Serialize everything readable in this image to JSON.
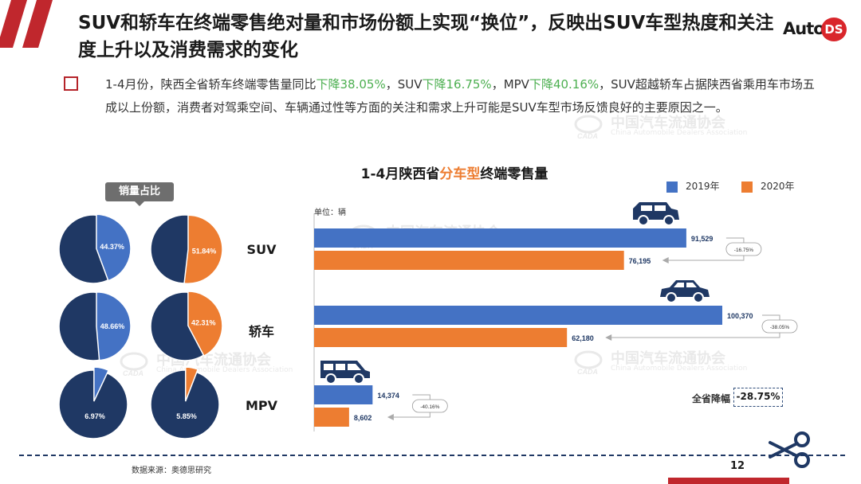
{
  "slide": {
    "title": "SUV和轿车在终端零售绝对量和市场份额上实现“换位”，反映出SUV车型热度和关注度上升以及消费需求的变化",
    "logo_auto": "Auto",
    "logo_ds": "DS",
    "bullet": {
      "p1": "1-4月份，陕西全省轿车终端零售量同比",
      "h1": "下降38.05%",
      "p2": "，SUV",
      "h2": "下降16.75%",
      "p3": "，MPV",
      "h3": "下降40.16%",
      "p4": "，SUV超越轿车占据陕西省乘用车市场五成以上份额，消费者对驾乘空间、车辆通过性等方面的关注和需求上升可能是SUV车型市场反馈良好的主要原因之一。"
    },
    "watermark_title": "中国汽车流通协会",
    "watermark_sub": "China Automobile Dealers Association",
    "badge": "销量占比",
    "source": "数据来源：奥德思研究",
    "page_number": "12"
  },
  "colors": {
    "y2019": "#4472c4",
    "y2020": "#ed7d31",
    "navy": "#1f3864",
    "accent_red": "#c0272d",
    "green": "#4caf50"
  },
  "chart_data": [
    {
      "type": "pie",
      "label_group": "销量占比",
      "categories": [
        "SUV",
        "轿车",
        "MPV"
      ],
      "years": [
        "2019年",
        "2020年"
      ],
      "shares": {
        "2019年": [
          44.37,
          48.66,
          6.97
        ],
        "2020年": [
          51.84,
          42.31,
          5.85
        ]
      },
      "share_labels": {
        "2019年": [
          "44.37%",
          "48.66%",
          "6.97%"
        ],
        "2020年": [
          "51.84%",
          "42.31%",
          "5.85%"
        ]
      }
    },
    {
      "type": "bar",
      "orientation": "horizontal",
      "title_pre": "1-4月陕西省",
      "title_hl": "分车型",
      "title_post": "终端零售量",
      "unit": "单位：辆",
      "categories": [
        "SUV",
        "轿车",
        "MPV"
      ],
      "series": [
        {
          "name": "2019年",
          "values": [
            91529,
            100370,
            14374
          ],
          "labels": [
            "91,529",
            "100,370",
            "14,374"
          ]
        },
        {
          "name": "2020年",
          "values": [
            76195,
            62180,
            8602
          ],
          "labels": [
            "76,195",
            "62,180",
            "8,602"
          ]
        }
      ],
      "changes": [
        "-16.75%",
        "-38.05%",
        "-40.16%"
      ],
      "total_change_label": "全省降幅",
      "total_change": "-28.75%",
      "xlim": [
        0,
        100370
      ]
    }
  ]
}
